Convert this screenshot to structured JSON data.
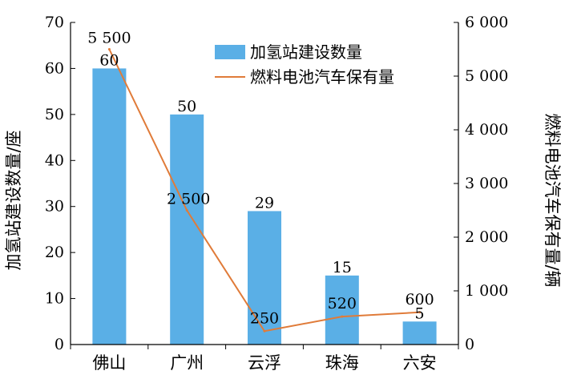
{
  "chart_data": {
    "type": "bar+line",
    "categories": [
      "佛山",
      "广州",
      "云浮",
      "珠海",
      "六安"
    ],
    "series": [
      {
        "name": "加氢站建设数量",
        "type": "bar",
        "axis": "left",
        "values": [
          60,
          50,
          29,
          15,
          5
        ],
        "labels": [
          "60",
          "50",
          "29",
          "15",
          "5"
        ],
        "color": "#5aafe6"
      },
      {
        "name": "燃料电池汽车保有量",
        "type": "line",
        "axis": "right",
        "values": [
          5500,
          2500,
          250,
          520,
          600
        ],
        "labels": [
          "5 500",
          "2 500",
          "250",
          "520",
          "600"
        ],
        "color": "#e07b39"
      }
    ],
    "ylabel_left": "加氢站建设数量/座",
    "ylabel_right": "燃料电池汽车保有量/辆",
    "ylim_left": [
      0,
      70
    ],
    "ylim_right": [
      0,
      6000
    ],
    "yticks_left": [
      "0",
      "10",
      "20",
      "30",
      "40",
      "50",
      "60",
      "70"
    ],
    "yticks_right": [
      "0",
      "1 000",
      "2 000",
      "3 000",
      "4 000",
      "5 000",
      "6 000"
    ],
    "legend_position": "top-right",
    "grid": false
  }
}
